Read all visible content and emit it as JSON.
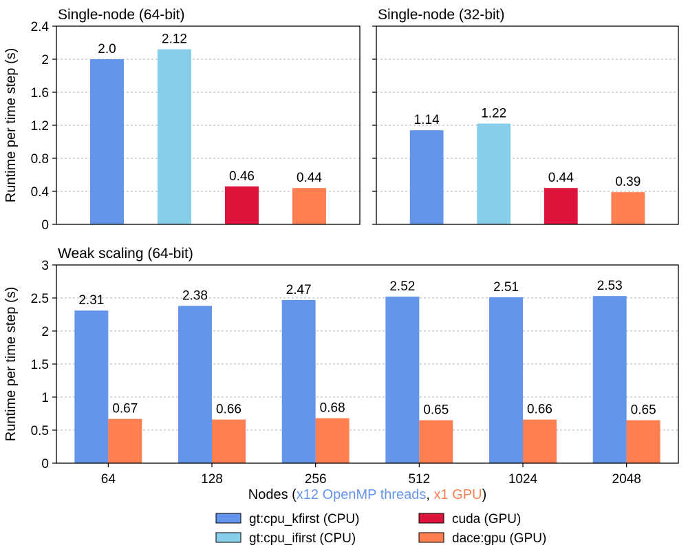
{
  "colors": {
    "gt_cpu_kfirst": "#6495ED",
    "gt_cpu_ifirst": "#87CEEB",
    "cuda": "#DC143C",
    "dace_gpu": "#FF7F50"
  },
  "legend": [
    {
      "key": "gt_cpu_kfirst",
      "label": "gt:cpu_kfirst (CPU)"
    },
    {
      "key": "gt_cpu_ifirst",
      "label": "gt:cpu_ifirst (CPU)"
    },
    {
      "key": "cuda",
      "label": "cuda (GPU)"
    },
    {
      "key": "dace_gpu",
      "label": "dace:gpu (GPU)"
    }
  ],
  "chart_data": [
    {
      "type": "bar",
      "title": "Single-node (64-bit)",
      "ylabel": "Runtime per time step (s)",
      "ylim": [
        0,
        2.4
      ],
      "yticks": [
        0,
        0.4,
        0.8,
        1.2,
        1.6,
        2,
        2.4
      ],
      "ytick_labels": [
        "0",
        "0.4",
        "0.8",
        "1.2",
        "1.6",
        "2",
        "2.4"
      ],
      "bars": [
        {
          "series": "gt_cpu_kfirst",
          "value": 2.0,
          "label": "2.0"
        },
        {
          "series": "gt_cpu_ifirst",
          "value": 2.12,
          "label": "2.12"
        },
        {
          "series": "cuda",
          "value": 0.46,
          "label": "0.46"
        },
        {
          "series": "dace_gpu",
          "value": 0.44,
          "label": "0.44"
        }
      ]
    },
    {
      "type": "bar",
      "title": "Single-node (32-bit)",
      "ylim": [
        0,
        2.4
      ],
      "yticks": [
        0,
        0.4,
        0.8,
        1.2,
        1.6,
        2,
        2.4
      ],
      "bars": [
        {
          "series": "gt_cpu_kfirst",
          "value": 1.14,
          "label": "1.14"
        },
        {
          "series": "gt_cpu_ifirst",
          "value": 1.22,
          "label": "1.22"
        },
        {
          "series": "cuda",
          "value": 0.44,
          "label": "0.44"
        },
        {
          "series": "dace_gpu",
          "value": 0.39,
          "label": "0.39"
        }
      ]
    },
    {
      "type": "bar",
      "title": "Weak scaling (64-bit)",
      "ylabel": "Runtime per time step (s)",
      "xlabel_parts": [
        {
          "text": "Nodes (",
          "color": "#000000"
        },
        {
          "text": "x12 OpenMP threads",
          "color": "#6495ED"
        },
        {
          "text": ", ",
          "color": "#000000"
        },
        {
          "text": "x1 GPU",
          "color": "#FF7F50"
        },
        {
          "text": ")",
          "color": "#000000"
        }
      ],
      "ylim": [
        0,
        3
      ],
      "yticks": [
        0,
        0.5,
        1,
        1.5,
        2,
        2.5,
        3
      ],
      "ytick_labels": [
        "0",
        "0.5",
        "1",
        "1.5",
        "2",
        "2.5",
        "3"
      ],
      "categories": [
        "64",
        "128",
        "256",
        "512",
        "1024",
        "2048"
      ],
      "series": [
        {
          "key": "gt_cpu_kfirst",
          "values": [
            2.31,
            2.38,
            2.47,
            2.52,
            2.51,
            2.53
          ],
          "labels": [
            "2.31",
            "2.38",
            "2.47",
            "2.52",
            "2.51",
            "2.53"
          ]
        },
        {
          "key": "dace_gpu",
          "values": [
            0.67,
            0.66,
            0.68,
            0.65,
            0.66,
            0.65
          ],
          "labels": [
            "0.67",
            "0.66",
            "0.68",
            "0.65",
            "0.66",
            "0.65"
          ]
        }
      ]
    }
  ]
}
